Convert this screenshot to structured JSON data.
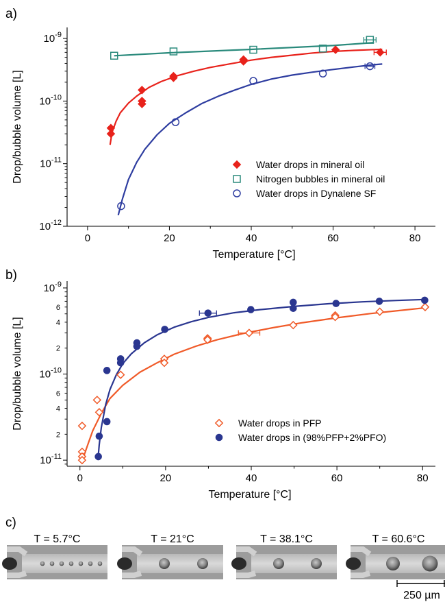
{
  "panels": {
    "a_label": "a)",
    "b_label": "b)",
    "c_label": "c)"
  },
  "chart_data": [
    {
      "type": "scatter",
      "title": "",
      "xlabel": "Temperature [°C]",
      "ylabel": "Drop/bubble volume [L]",
      "xlim": [
        -5,
        85
      ],
      "ylim": [
        1e-12,
        1.5e-09
      ],
      "yscale": "log",
      "xticks": [
        "0",
        "20",
        "40",
        "60",
        "80"
      ],
      "yticks": [
        {
          "base": "10",
          "exp": "-12",
          "value": 1e-12
        },
        {
          "base": "10",
          "exp": "-11",
          "value": 1e-11
        },
        {
          "base": "10",
          "exp": "-10",
          "value": 1e-10
        },
        {
          "base": "10",
          "exp": "-9",
          "value": 1e-09
        }
      ],
      "grid": false,
      "legend_position": "bottom-right",
      "series": [
        {
          "name": "Water drops in mineral oil",
          "color": "#e8221b",
          "marker": "diamond-filled",
          "points": [
            [
              5.7,
              3.7e-11
            ],
            [
              5.7,
              3e-11
            ],
            [
              13.3,
              1.5e-10
            ],
            [
              13.3,
              1e-10
            ],
            [
              13.3,
              9e-11
            ],
            [
              21,
              2.5e-10
            ],
            [
              21,
              2.35e-10
            ],
            [
              38.1,
              4.6e-10
            ],
            [
              38.1,
              4.3e-10
            ],
            [
              60.6,
              6.6e-10
            ],
            [
              71.5,
              6e-10
            ]
          ],
          "xerr": [
            null,
            null,
            null,
            null,
            null,
            null,
            null,
            null,
            null,
            null,
            1.5
          ],
          "fit": [
            [
              5.5,
              2e-11
            ],
            [
              6,
              3.2e-11
            ],
            [
              7,
              4.8e-11
            ],
            [
              8,
              6.5e-11
            ],
            [
              10,
              9.3e-11
            ],
            [
              12,
              1.2e-10
            ],
            [
              15,
              1.65e-10
            ],
            [
              18,
              2.05e-10
            ],
            [
              22,
              2.55e-10
            ],
            [
              26,
              3e-10
            ],
            [
              30,
              3.45e-10
            ],
            [
              35,
              3.95e-10
            ],
            [
              40,
              4.5e-10
            ],
            [
              45,
              5e-10
            ],
            [
              50,
              5.4e-10
            ],
            [
              55,
              5.85e-10
            ],
            [
              60,
              6.2e-10
            ],
            [
              65,
              6.45e-10
            ],
            [
              70,
              6.65e-10
            ],
            [
              72,
              6.7e-10
            ]
          ]
        },
        {
          "name": "Nitrogen bubbles in mineral oil",
          "color": "#2a8a7c",
          "marker": "square-open",
          "points": [
            [
              6.5,
              5.3e-10
            ],
            [
              21,
              6.2e-10
            ],
            [
              40.5,
              6.6e-10
            ],
            [
              57.5,
              6.9e-10
            ],
            [
              69,
              9.5e-10
            ]
          ],
          "xerr": [
            null,
            null,
            null,
            null,
            1.5
          ],
          "fit": [
            [
              6.5,
              5.3e-10
            ],
            [
              20,
              5.9e-10
            ],
            [
              40,
              6.7e-10
            ],
            [
              60,
              7.7e-10
            ],
            [
              70,
              8.6e-10
            ]
          ]
        },
        {
          "name": "Water drops in Dynalene SF",
          "color": "#2e3da0",
          "marker": "circle-open",
          "points": [
            [
              8.2,
              2.1e-12
            ],
            [
              21.5,
              4.6e-11
            ],
            [
              40.5,
              2.1e-10
            ],
            [
              57.5,
              2.75e-10
            ],
            [
              69,
              3.6e-10
            ]
          ],
          "xerr": [
            null,
            null,
            null,
            null,
            1.2
          ],
          "fit": [
            [
              7.5,
              1.5e-12
            ],
            [
              8.5,
              2.7e-12
            ],
            [
              10,
              5.6e-12
            ],
            [
              12,
              1.05e-11
            ],
            [
              14,
              1.7e-11
            ],
            [
              17,
              2.9e-11
            ],
            [
              20,
              4.4e-11
            ],
            [
              24,
              6.5e-11
            ],
            [
              28,
              9.2e-11
            ],
            [
              32,
              1.2e-10
            ],
            [
              36,
              1.5e-10
            ],
            [
              40,
              1.85e-10
            ],
            [
              45,
              2.25e-10
            ],
            [
              50,
              2.6e-10
            ],
            [
              55,
              2.9e-10
            ],
            [
              60,
              3.2e-10
            ],
            [
              65,
              3.5e-10
            ],
            [
              70,
              3.8e-10
            ],
            [
              72,
              3.9e-10
            ]
          ]
        }
      ]
    },
    {
      "type": "scatter",
      "title": "",
      "xlabel": "Temperature [°C]",
      "ylabel": "Drop/bubble volume [L]",
      "xlim": [
        -3,
        83
      ],
      "ylim": [
        8.5e-12,
        1.2e-09
      ],
      "yscale": "log",
      "xticks": [
        "0",
        "20",
        "40",
        "60",
        "80"
      ],
      "yticks": [
        {
          "base": "10",
          "exp": "-11",
          "value": 1e-11
        },
        {
          "base": "10",
          "exp": "-10",
          "value": 1e-10
        },
        {
          "base": "10",
          "exp": "-9",
          "value": 1e-09
        }
      ],
      "minor_yticks": [
        {
          "label": "2",
          "value": 2e-11
        },
        {
          "label": "4",
          "value": 4e-11
        },
        {
          "label": "6",
          "value": 6e-11
        },
        {
          "label": "2",
          "value": 2e-10
        },
        {
          "label": "4",
          "value": 4e-10
        },
        {
          "label": "6",
          "value": 6e-10
        }
      ],
      "grid": false,
      "legend_position": "bottom-right",
      "series": [
        {
          "name": "Water drops in PFP",
          "color": "#f05a28",
          "marker": "diamond-open",
          "points": [
            [
              0.5,
              2.5e-11
            ],
            [
              0.5,
              1.25e-11
            ],
            [
              0.5,
              1.1e-11
            ],
            [
              0.5,
              1e-11
            ],
            [
              4.0,
              5e-11
            ],
            [
              4.5,
              3.6e-11
            ],
            [
              9.5,
              9.8e-11
            ],
            [
              19.7,
              1.5e-10
            ],
            [
              19.7,
              1.35e-10
            ],
            [
              29.8,
              2.6e-10
            ],
            [
              29.8,
              2.5e-10
            ],
            [
              39.5,
              3e-10
            ],
            [
              49.8,
              3.7e-10
            ],
            [
              59.6,
              4.8e-10
            ],
            [
              59.6,
              4.6e-10
            ],
            [
              70.0,
              5.3e-10
            ],
            [
              80.6,
              6e-10
            ]
          ],
          "xerr": [
            null,
            null,
            null,
            null,
            null,
            null,
            null,
            null,
            null,
            null,
            null,
            2.5,
            null,
            null,
            null,
            null,
            null
          ],
          "fit": [
            [
              0.5,
              9.5e-12
            ],
            [
              1,
              1.15e-11
            ],
            [
              2,
              1.6e-11
            ],
            [
              3,
              2.2e-11
            ],
            [
              5,
              3.5e-11
            ],
            [
              7,
              5.2e-11
            ],
            [
              10,
              7.4e-11
            ],
            [
              14,
              1.05e-10
            ],
            [
              18,
              1.35e-10
            ],
            [
              22,
              1.7e-10
            ],
            [
              27,
              2.1e-10
            ],
            [
              32,
              2.5e-10
            ],
            [
              38,
              2.95e-10
            ],
            [
              45,
              3.45e-10
            ],
            [
              52,
              3.95e-10
            ],
            [
              60,
              4.5e-10
            ],
            [
              68,
              5.05e-10
            ],
            [
              75,
              5.5e-10
            ],
            [
              81,
              5.9e-10
            ]
          ]
        },
        {
          "name": "Water drops in (98%PFP+2%PFO)",
          "color": "#2a3690",
          "marker": "circle-filled",
          "points": [
            [
              4.3,
              1.1e-11
            ],
            [
              4.5,
              1.9e-11
            ],
            [
              6.3,
              2.8e-11
            ],
            [
              6.3,
              1.1e-10
            ],
            [
              9.5,
              1.5e-10
            ],
            [
              9.5,
              1.35e-10
            ],
            [
              13.3,
              2.3e-10
            ],
            [
              13.3,
              2.1e-10
            ],
            [
              19.8,
              3.3e-10
            ],
            [
              29.9,
              5.1e-10
            ],
            [
              39.9,
              5.6e-10
            ],
            [
              49.8,
              6.8e-10
            ],
            [
              49.8,
              5.8e-10
            ],
            [
              59.8,
              6.6e-10
            ],
            [
              69.9,
              7e-10
            ],
            [
              80.5,
              7.2e-10
            ]
          ],
          "xerr": [
            null,
            null,
            null,
            null,
            null,
            null,
            null,
            null,
            null,
            2.0,
            null,
            null,
            null,
            null,
            null,
            null
          ],
          "fit": [
            [
              4.2,
              1e-11
            ],
            [
              4.5,
              1.5e-11
            ],
            [
              5,
              2.4e-11
            ],
            [
              6,
              4.4e-11
            ],
            [
              7,
              6.6e-11
            ],
            [
              8.5,
              9.8e-11
            ],
            [
              10,
              1.32e-10
            ],
            [
              12,
              1.72e-10
            ],
            [
              15,
              2.3e-10
            ],
            [
              18,
              2.85e-10
            ],
            [
              22,
              3.5e-10
            ],
            [
              26,
              4.05e-10
            ],
            [
              30,
              4.55e-10
            ],
            [
              36,
              5.15e-10
            ],
            [
              42,
              5.6e-10
            ],
            [
              50,
              6.1e-10
            ],
            [
              58,
              6.55e-10
            ],
            [
              66,
              6.9e-10
            ],
            [
              74,
              7.15e-10
            ],
            [
              81,
              7.35e-10
            ]
          ]
        }
      ]
    }
  ],
  "photos": {
    "items": [
      {
        "label": "T = 5.7°C",
        "drops": "many-small"
      },
      {
        "label": "T = 21°C",
        "drops": "two-medium"
      },
      {
        "label": "T = 38.1°C",
        "drops": "two-medium"
      },
      {
        "label": "T = 60.6°C",
        "drops": "two-large"
      }
    ],
    "scalebar_label": "250 µm"
  }
}
